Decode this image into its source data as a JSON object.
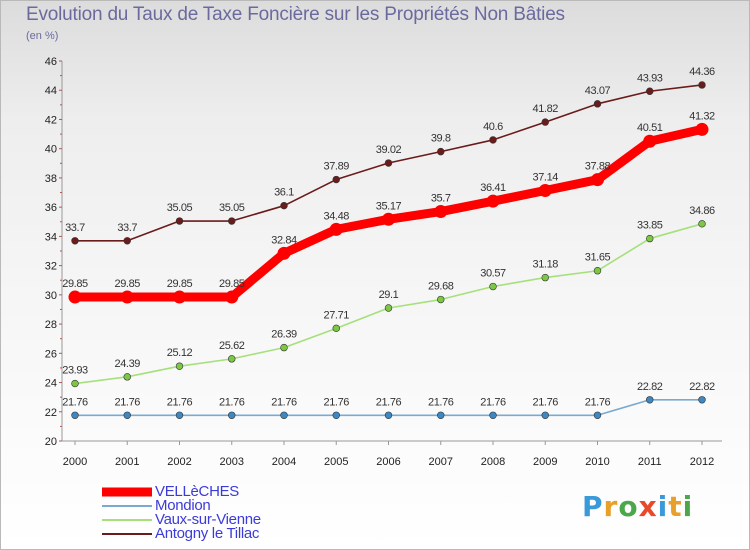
{
  "page": {
    "title": "Evolution du Taux de Taxe Foncière sur les Propriétés Non Bâties",
    "subtitle": "(en %)",
    "logo_text": "Proxiti",
    "logo_colors": [
      "#3a9ad9",
      "#e8a02a",
      "#4aa84a",
      "#e84a2a",
      "#3a9ad9",
      "#e8a02a",
      "#4aa84a"
    ]
  },
  "chart_data": {
    "type": "line",
    "title": "Evolution du Taux de Taxe Foncière sur les Propriétés Non Bâties",
    "ylabel": "(en %)",
    "xlabel": "",
    "x": [
      "2000",
      "2001",
      "2002",
      "2003",
      "2004",
      "2005",
      "2006",
      "2007",
      "2008",
      "2009",
      "2010",
      "2011",
      "2012"
    ],
    "ylim": [
      20,
      46
    ],
    "yticks": [
      20,
      22,
      24,
      26,
      28,
      30,
      32,
      34,
      36,
      38,
      40,
      42,
      44,
      46
    ],
    "grid": false,
    "legend_position": "bottom-left",
    "series": [
      {
        "name": "Antogny le Tillac",
        "color": "#6b1b1b",
        "marker_color": "#6b1b1b",
        "weight": "thin",
        "values": [
          33.7,
          33.7,
          35.05,
          35.05,
          36.1,
          37.89,
          39.02,
          39.8,
          40.6,
          41.82,
          43.07,
          43.93,
          44.36
        ],
        "labels": [
          "33.7",
          "33.7",
          "35.05",
          "35.05",
          "36.1",
          "37.89",
          "39.02",
          "39.8",
          "40.6",
          "41.82",
          "43.07",
          "43.93",
          "44.36"
        ]
      },
      {
        "name": "VELLèCHES",
        "color": "#ff0000",
        "marker_color": "#ff0000",
        "weight": "thick",
        "values": [
          29.85,
          29.85,
          29.85,
          29.85,
          32.84,
          34.48,
          35.17,
          35.7,
          36.41,
          37.14,
          37.88,
          40.51,
          41.32
        ],
        "labels": [
          "29.85",
          "29.85",
          "29.85",
          "29.85",
          "32.84",
          "34.48",
          "35.17",
          "35.7",
          "36.41",
          "37.14",
          "37.88",
          "40.51",
          "41.32"
        ]
      },
      {
        "name": "Vaux-sur-Vienne",
        "color": "#a6e07a",
        "marker_color": "#7cc744",
        "weight": "thin",
        "values": [
          23.93,
          24.39,
          25.12,
          25.62,
          26.39,
          27.71,
          29.1,
          29.68,
          30.57,
          31.18,
          31.65,
          33.85,
          34.86
        ],
        "labels": [
          "23.93",
          "24.39",
          "25.12",
          "25.62",
          "26.39",
          "27.71",
          "29.1",
          "29.68",
          "30.57",
          "31.18",
          "31.65",
          "33.85",
          "34.86"
        ]
      },
      {
        "name": "Mondion",
        "color": "#7aaad0",
        "marker_color": "#3b88c4",
        "weight": "thin",
        "values": [
          21.76,
          21.76,
          21.76,
          21.76,
          21.76,
          21.76,
          21.76,
          21.76,
          21.76,
          21.76,
          21.76,
          22.82,
          22.82
        ],
        "labels": [
          "21.76",
          "21.76",
          "21.76",
          "21.76",
          "21.76",
          "21.76",
          "21.76",
          "21.76",
          "21.76",
          "21.76",
          "21.76",
          "22.82",
          "22.82"
        ]
      }
    ],
    "legend": [
      "VELLèCHES",
      "Mondion",
      "Vaux-sur-Vienne",
      "Antogny le Tillac"
    ]
  }
}
